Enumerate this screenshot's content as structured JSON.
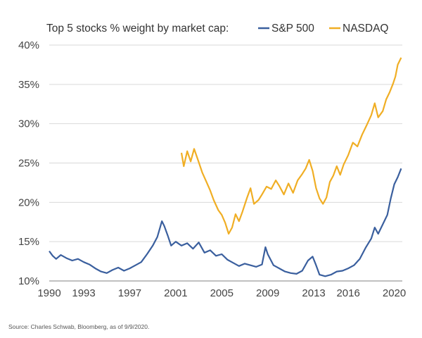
{
  "chart_data": {
    "type": "line",
    "title": "Top 5 stocks % weight by market cap:",
    "source": "Source: Charles Schwab, Bloomberg, as of 9/9/2020.",
    "x_range": [
      1990,
      2020.7
    ],
    "ylim": [
      10,
      40
    ],
    "y_ticks": [
      10,
      15,
      20,
      25,
      30,
      35,
      40
    ],
    "y_tick_labels": [
      "10%",
      "15%",
      "20%",
      "25%",
      "30%",
      "35%",
      "40%"
    ],
    "x_ticks": [
      1990,
      1993,
      1997,
      2001,
      2005,
      2009,
      2013,
      2016,
      2020
    ],
    "x_tick_labels": [
      "1990",
      "1993",
      "1997",
      "2001",
      "2005",
      "2009",
      "2013",
      "2016",
      "2020"
    ],
    "grid": "horizontal",
    "legend_position": "top",
    "series": [
      {
        "name": "S&P 500",
        "color": "#3a5f9e",
        "points": [
          [
            1990.0,
            13.8
          ],
          [
            1990.3,
            13.2
          ],
          [
            1990.6,
            12.8
          ],
          [
            1991.0,
            13.3
          ],
          [
            1991.5,
            12.9
          ],
          [
            1992.0,
            12.6
          ],
          [
            1992.5,
            12.8
          ],
          [
            1993.0,
            12.4
          ],
          [
            1993.5,
            12.1
          ],
          [
            1994.0,
            11.6
          ],
          [
            1994.5,
            11.2
          ],
          [
            1995.0,
            11.0
          ],
          [
            1995.5,
            11.4
          ],
          [
            1996.0,
            11.7
          ],
          [
            1996.5,
            11.3
          ],
          [
            1997.0,
            11.6
          ],
          [
            1997.5,
            12.0
          ],
          [
            1998.0,
            12.4
          ],
          [
            1998.5,
            13.4
          ],
          [
            1999.0,
            14.5
          ],
          [
            1999.4,
            15.6
          ],
          [
            1999.8,
            17.6
          ],
          [
            2000.0,
            17.0
          ],
          [
            2000.3,
            15.8
          ],
          [
            2000.6,
            14.5
          ],
          [
            2001.0,
            15.0
          ],
          [
            2001.5,
            14.5
          ],
          [
            2002.0,
            14.8
          ],
          [
            2002.5,
            14.1
          ],
          [
            2003.0,
            14.9
          ],
          [
            2003.5,
            13.6
          ],
          [
            2004.0,
            13.9
          ],
          [
            2004.5,
            13.2
          ],
          [
            2005.0,
            13.4
          ],
          [
            2005.5,
            12.7
          ],
          [
            2006.0,
            12.3
          ],
          [
            2006.5,
            11.9
          ],
          [
            2007.0,
            12.2
          ],
          [
            2007.5,
            12.0
          ],
          [
            2008.0,
            11.8
          ],
          [
            2008.5,
            12.1
          ],
          [
            2008.8,
            14.3
          ],
          [
            2009.0,
            13.4
          ],
          [
            2009.5,
            12.0
          ],
          [
            2010.0,
            11.6
          ],
          [
            2010.5,
            11.2
          ],
          [
            2011.0,
            11.0
          ],
          [
            2011.5,
            10.9
          ],
          [
            2012.0,
            11.3
          ],
          [
            2012.5,
            12.6
          ],
          [
            2012.9,
            13.1
          ],
          [
            2013.2,
            12.0
          ],
          [
            2013.5,
            10.8
          ],
          [
            2014.0,
            10.6
          ],
          [
            2014.5,
            10.8
          ],
          [
            2015.0,
            11.2
          ],
          [
            2015.5,
            11.3
          ],
          [
            2016.0,
            11.6
          ],
          [
            2016.5,
            12.0
          ],
          [
            2017.0,
            12.8
          ],
          [
            2017.5,
            14.2
          ],
          [
            2018.0,
            15.4
          ],
          [
            2018.3,
            16.8
          ],
          [
            2018.6,
            16.0
          ],
          [
            2019.0,
            17.2
          ],
          [
            2019.4,
            18.4
          ],
          [
            2019.7,
            20.5
          ],
          [
            2020.0,
            22.3
          ],
          [
            2020.3,
            23.2
          ],
          [
            2020.6,
            24.3
          ]
        ]
      },
      {
        "name": "NASDAQ",
        "color": "#f0ae24",
        "points": [
          [
            2001.5,
            26.3
          ],
          [
            2001.7,
            24.6
          ],
          [
            2002.0,
            26.5
          ],
          [
            2002.3,
            25.2
          ],
          [
            2002.6,
            26.8
          ],
          [
            2003.0,
            25.1
          ],
          [
            2003.3,
            23.8
          ],
          [
            2003.7,
            22.5
          ],
          [
            2004.0,
            21.5
          ],
          [
            2004.3,
            20.3
          ],
          [
            2004.7,
            19.0
          ],
          [
            2005.0,
            18.4
          ],
          [
            2005.3,
            17.4
          ],
          [
            2005.6,
            16.0
          ],
          [
            2005.9,
            16.8
          ],
          [
            2006.2,
            18.5
          ],
          [
            2006.5,
            17.6
          ],
          [
            2006.8,
            18.8
          ],
          [
            2007.2,
            20.6
          ],
          [
            2007.5,
            21.8
          ],
          [
            2007.8,
            19.8
          ],
          [
            2008.2,
            20.3
          ],
          [
            2008.5,
            21.0
          ],
          [
            2008.9,
            22.0
          ],
          [
            2009.3,
            21.7
          ],
          [
            2009.7,
            22.8
          ],
          [
            2010.0,
            22.1
          ],
          [
            2010.4,
            21.0
          ],
          [
            2010.8,
            22.4
          ],
          [
            2011.2,
            21.2
          ],
          [
            2011.6,
            22.8
          ],
          [
            2012.0,
            23.6
          ],
          [
            2012.3,
            24.3
          ],
          [
            2012.6,
            25.4
          ],
          [
            2012.9,
            24.0
          ],
          [
            2013.2,
            21.8
          ],
          [
            2013.5,
            20.5
          ],
          [
            2013.8,
            19.8
          ],
          [
            2014.1,
            20.6
          ],
          [
            2014.4,
            22.6
          ],
          [
            2014.7,
            23.4
          ],
          [
            2015.0,
            24.6
          ],
          [
            2015.3,
            23.5
          ],
          [
            2015.6,
            24.8
          ],
          [
            2016.0,
            26.0
          ],
          [
            2016.4,
            27.6
          ],
          [
            2016.8,
            27.1
          ],
          [
            2017.2,
            28.6
          ],
          [
            2017.6,
            29.8
          ],
          [
            2018.0,
            31.1
          ],
          [
            2018.3,
            32.6
          ],
          [
            2018.6,
            30.8
          ],
          [
            2019.0,
            31.6
          ],
          [
            2019.3,
            33.1
          ],
          [
            2019.6,
            34.0
          ],
          [
            2019.9,
            35.1
          ],
          [
            2020.1,
            36.0
          ],
          [
            2020.3,
            37.5
          ],
          [
            2020.6,
            38.4
          ]
        ]
      }
    ]
  }
}
